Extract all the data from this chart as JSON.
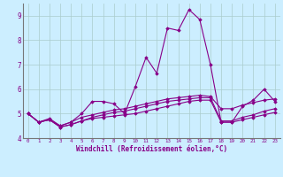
{
  "xlabel": "Windchill (Refroidissement éolien,°C)",
  "background_color": "#cceeff",
  "grid_color": "#aacccc",
  "line_color": "#880088",
  "xlim": [
    -0.5,
    23.5
  ],
  "ylim": [
    4.0,
    9.5
  ],
  "xticks": [
    0,
    1,
    2,
    3,
    4,
    5,
    6,
    7,
    8,
    9,
    10,
    11,
    12,
    13,
    14,
    15,
    16,
    17,
    18,
    19,
    20,
    21,
    22,
    23
  ],
  "yticks": [
    4,
    5,
    6,
    7,
    8,
    9
  ],
  "series": [
    [
      5.0,
      4.65,
      4.8,
      4.5,
      4.65,
      5.0,
      5.5,
      5.5,
      5.4,
      5.0,
      6.1,
      7.3,
      6.65,
      8.5,
      8.4,
      9.25,
      8.85,
      7.0,
      4.65,
      4.65,
      5.3,
      5.55,
      6.0,
      5.5
    ],
    [
      5.0,
      4.65,
      4.75,
      4.45,
      4.55,
      4.7,
      4.8,
      4.85,
      4.9,
      4.95,
      5.0,
      5.1,
      5.2,
      5.3,
      5.4,
      5.5,
      5.55,
      5.55,
      4.65,
      4.65,
      4.75,
      4.85,
      4.95,
      5.05
    ],
    [
      5.0,
      4.65,
      4.75,
      4.45,
      4.55,
      4.7,
      4.85,
      4.95,
      5.05,
      5.1,
      5.2,
      5.3,
      5.4,
      5.5,
      5.55,
      5.6,
      5.65,
      5.65,
      4.7,
      4.7,
      4.85,
      4.95,
      5.1,
      5.2
    ],
    [
      5.0,
      4.65,
      4.75,
      4.5,
      4.65,
      4.85,
      4.95,
      5.05,
      5.15,
      5.2,
      5.3,
      5.4,
      5.5,
      5.6,
      5.65,
      5.7,
      5.75,
      5.7,
      5.2,
      5.2,
      5.35,
      5.45,
      5.55,
      5.6
    ]
  ]
}
